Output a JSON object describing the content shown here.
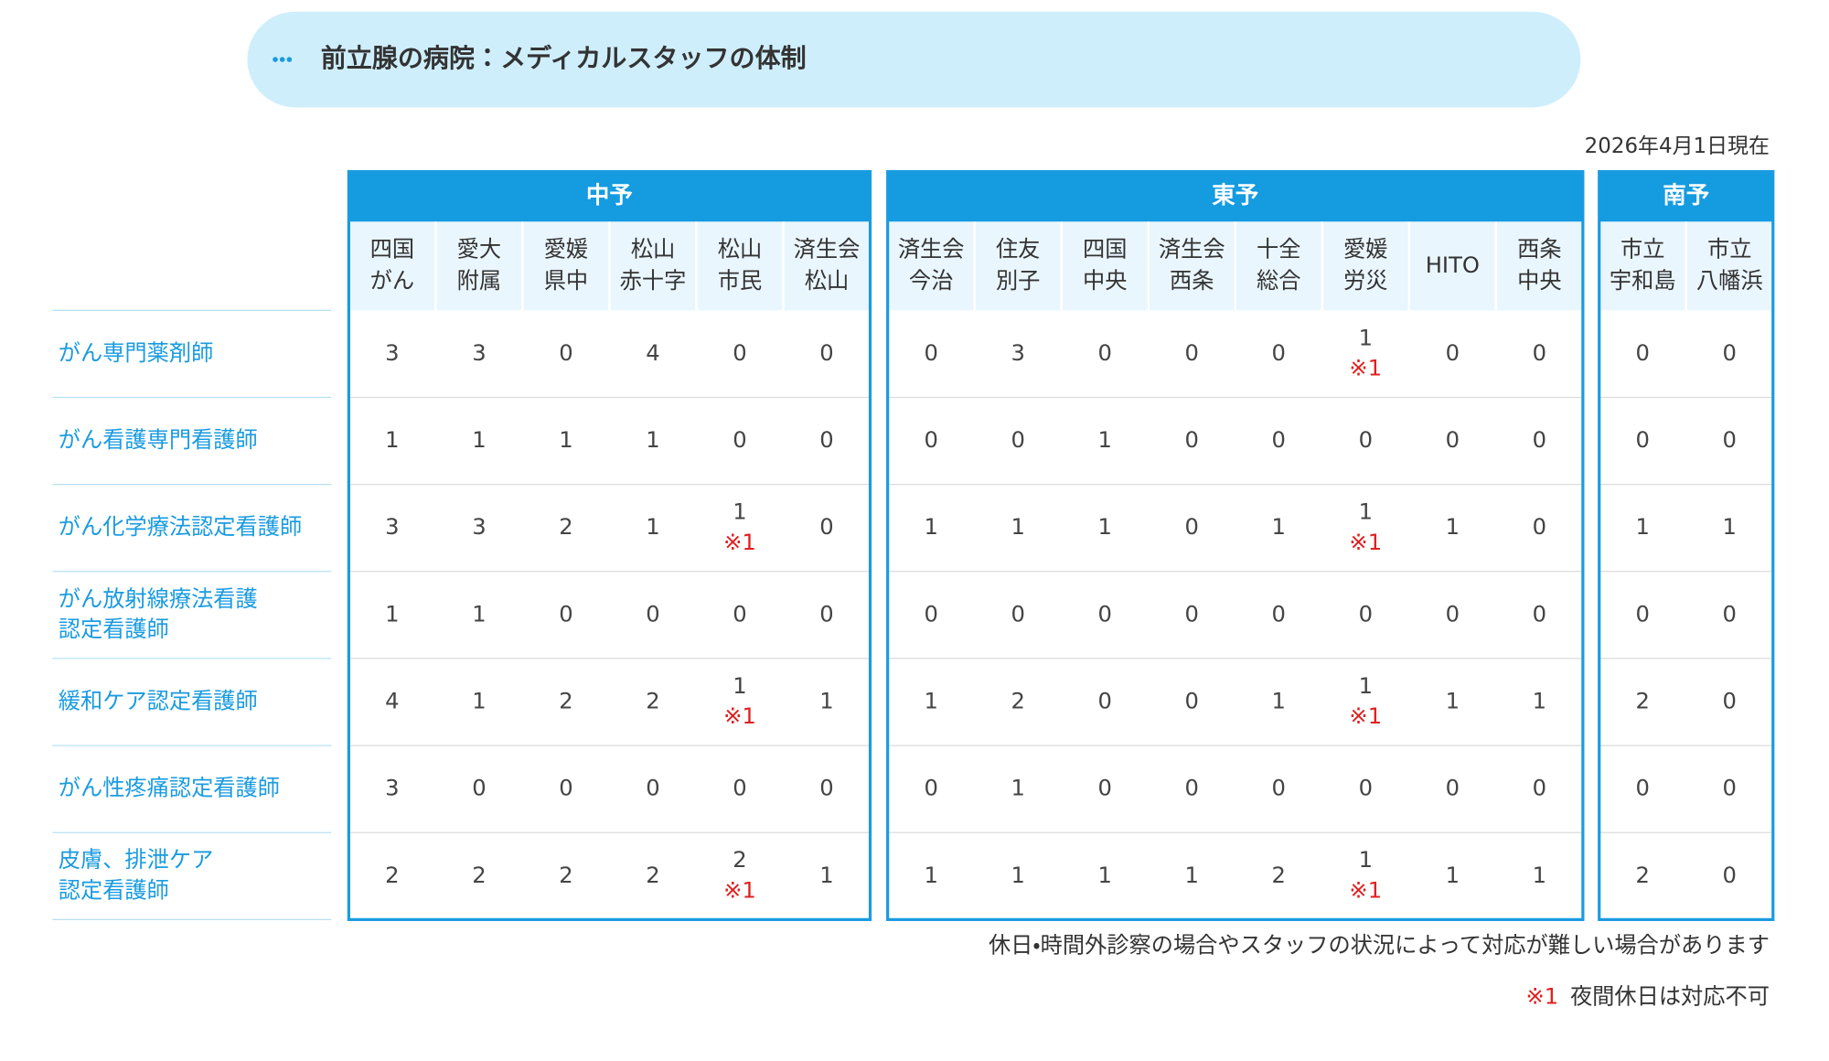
{
  "header": {
    "title": "前立腺の病院：メディカルスタッフの体制",
    "date": "2026年4月1日現在"
  },
  "groups": [
    {
      "name": "中予",
      "hospitals": [
        [
          "四国",
          "がん"
        ],
        [
          "愛大",
          "附属"
        ],
        [
          "愛媛",
          "県中"
        ],
        [
          "松山",
          "赤十字"
        ],
        [
          "松山",
          "市民"
        ],
        [
          "済生会",
          "松山"
        ]
      ]
    },
    {
      "name": "東予",
      "hospitals": [
        [
          "済生会",
          "今治"
        ],
        [
          "住友",
          "別子"
        ],
        [
          "四国",
          "中央"
        ],
        [
          "済生会",
          "西条"
        ],
        [
          "十全",
          "総合"
        ],
        [
          "愛媛",
          "労災"
        ],
        [
          "HITO"
        ],
        [
          "西条",
          "中央"
        ]
      ]
    },
    {
      "name": "南予",
      "hospitals": [
        [
          "市立",
          "宇和島"
        ],
        [
          "市立",
          "八幡浜"
        ]
      ]
    }
  ],
  "rows": [
    {
      "label": [
        "がん専門薬剤師"
      ],
      "cells": [
        3,
        3,
        0,
        4,
        0,
        0,
        0,
        3,
        0,
        0,
        0,
        {
          "value": 1,
          "note": "※1"
        },
        0,
        0,
        0,
        0
      ]
    },
    {
      "label": [
        "がん看護専門看護師"
      ],
      "cells": [
        1,
        1,
        1,
        1,
        0,
        0,
        0,
        0,
        1,
        0,
        0,
        0,
        0,
        0,
        0,
        0
      ]
    },
    {
      "label": [
        "がん化学療法認定看護師"
      ],
      "cells": [
        3,
        3,
        2,
        1,
        {
          "value": 1,
          "note": "※1"
        },
        0,
        1,
        1,
        1,
        0,
        1,
        {
          "value": 1,
          "note": "※1"
        },
        1,
        0,
        1,
        1
      ]
    },
    {
      "label": [
        "がん放射線療法看護",
        "認定看護師"
      ],
      "cells": [
        1,
        1,
        0,
        0,
        0,
        0,
        0,
        0,
        0,
        0,
        0,
        0,
        0,
        0,
        0,
        0
      ]
    },
    {
      "label": [
        "緩和ケア認定看護師"
      ],
      "cells": [
        4,
        1,
        2,
        2,
        {
          "value": 1,
          "note": "※1"
        },
        1,
        1,
        2,
        0,
        0,
        1,
        {
          "value": 1,
          "note": "※1"
        },
        1,
        1,
        2,
        0
      ]
    },
    {
      "label": [
        "がん性疼痛認定看護師"
      ],
      "cells": [
        3,
        0,
        0,
        0,
        0,
        0,
        0,
        1,
        0,
        0,
        0,
        0,
        0,
        0,
        0,
        0
      ]
    },
    {
      "label": [
        "皮膚、排泄ケア",
        "認定看護師"
      ],
      "cells": [
        2,
        2,
        2,
        2,
        {
          "value": 2,
          "note": "※1"
        },
        1,
        1,
        1,
        1,
        1,
        2,
        {
          "value": 1,
          "note": "※1"
        },
        1,
        1,
        2,
        0
      ]
    }
  ],
  "notes": {
    "caution": "休日・時間外診察の場合やスタッフの状況によって対応が難しい場合があります",
    "footnote": {
      "mark": "※1",
      "text": "夜間休日は対応不可"
    }
  }
}
